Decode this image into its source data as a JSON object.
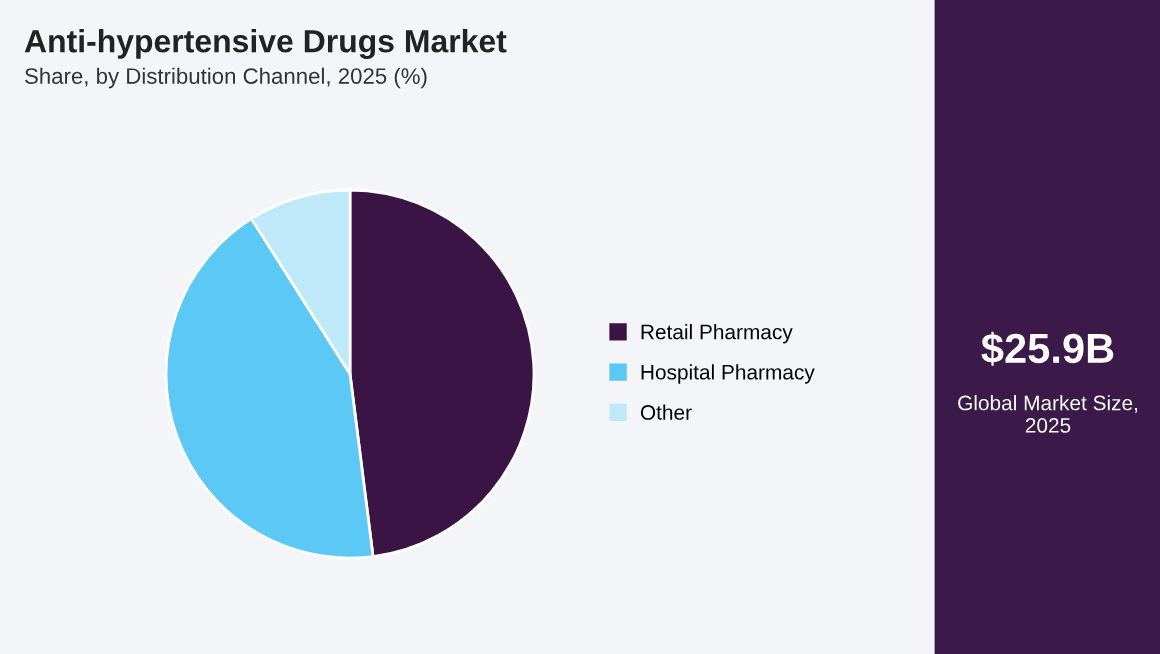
{
  "chart_data": {
    "type": "pie",
    "title": "Anti-hypertensive Drugs Market",
    "subtitle": "Share, by Distribution Channel, 2025 (%)",
    "categories": [
      "Retail Pharmacy",
      "Hospital Pharmacy",
      "Other"
    ],
    "values": [
      48,
      43,
      9
    ],
    "colors": [
      "#3b1446",
      "#5bc8f5",
      "#bfe9f9"
    ],
    "legend": "right",
    "annotations": [
      "$25.9B",
      "Global Market Size, 2025"
    ]
  }
}
